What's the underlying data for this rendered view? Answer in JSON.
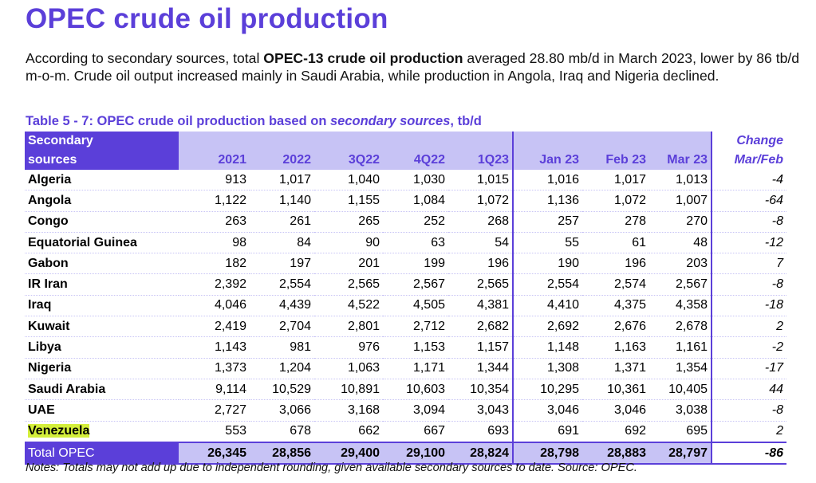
{
  "title": "OPEC crude oil production",
  "intro": {
    "part1": "According to secondary sources, total ",
    "bold": "OPEC-13 crude oil production",
    "part2": " averaged 28.80 mb/d in March 2023, lower by 86 tb/d m-o-m. Crude oil output increased mainly in Saudi Arabia, while production in Angola, Iraq and Nigeria declined."
  },
  "caption": {
    "part1": "Table 5 - 7: OPEC crude oil production based on ",
    "italic": "secondary sources",
    "part2": ", tb/d"
  },
  "table": {
    "corner_line1": "Secondary",
    "corner_line2": "sources",
    "change_line1": "Change",
    "change_line2": "Mar/Feb",
    "columns": [
      "2021",
      "2022",
      "3Q22",
      "4Q22",
      "1Q23",
      "Jan 23",
      "Feb 23",
      "Mar 23"
    ],
    "rows": [
      {
        "name": "Algeria",
        "values": [
          "913",
          "1,017",
          "1,040",
          "1,030",
          "1,015",
          "1,016",
          "1,017",
          "1,013"
        ],
        "change": "-4"
      },
      {
        "name": "Angola",
        "values": [
          "1,122",
          "1,140",
          "1,155",
          "1,084",
          "1,072",
          "1,136",
          "1,072",
          "1,007"
        ],
        "change": "-64"
      },
      {
        "name": "Congo",
        "values": [
          "263",
          "261",
          "265",
          "252",
          "268",
          "257",
          "278",
          "270"
        ],
        "change": "-8"
      },
      {
        "name": "Equatorial Guinea",
        "values": [
          "98",
          "84",
          "90",
          "63",
          "54",
          "55",
          "61",
          "48"
        ],
        "change": "-12"
      },
      {
        "name": "Gabon",
        "values": [
          "182",
          "197",
          "201",
          "199",
          "196",
          "190",
          "196",
          "203"
        ],
        "change": "7"
      },
      {
        "name": "IR Iran",
        "values": [
          "2,392",
          "2,554",
          "2,565",
          "2,567",
          "2,565",
          "2,554",
          "2,574",
          "2,567"
        ],
        "change": "-8"
      },
      {
        "name": "Iraq",
        "values": [
          "4,046",
          "4,439",
          "4,522",
          "4,505",
          "4,381",
          "4,410",
          "4,375",
          "4,358"
        ],
        "change": "-18"
      },
      {
        "name": "Kuwait",
        "values": [
          "2,419",
          "2,704",
          "2,801",
          "2,712",
          "2,682",
          "2,692",
          "2,676",
          "2,678"
        ],
        "change": "2"
      },
      {
        "name": "Libya",
        "values": [
          "1,143",
          "981",
          "976",
          "1,153",
          "1,157",
          "1,148",
          "1,163",
          "1,161"
        ],
        "change": "-2"
      },
      {
        "name": "Nigeria",
        "values": [
          "1,373",
          "1,204",
          "1,063",
          "1,171",
          "1,344",
          "1,308",
          "1,371",
          "1,354"
        ],
        "change": "-17"
      },
      {
        "name": "Saudi Arabia",
        "values": [
          "9,114",
          "10,529",
          "10,891",
          "10,603",
          "10,354",
          "10,295",
          "10,361",
          "10,405"
        ],
        "change": "44"
      },
      {
        "name": "UAE",
        "values": [
          "2,727",
          "3,066",
          "3,168",
          "3,094",
          "3,043",
          "3,046",
          "3,046",
          "3,038"
        ],
        "change": "-8"
      },
      {
        "name": "Venezuela",
        "values": [
          "553",
          "678",
          "662",
          "667",
          "693",
          "691",
          "692",
          "695"
        ],
        "change": "2",
        "highlight": true
      }
    ],
    "total": {
      "name": "Total  OPEC",
      "values": [
        "26,345",
        "28,856",
        "29,400",
        "29,100",
        "28,824",
        "28,798",
        "28,883",
        "28,797"
      ],
      "change": "-86"
    },
    "colors": {
      "accent": "#5b3fd9",
      "header_fill": "#c7c3f5",
      "highlight": "#d4ef3b"
    }
  },
  "notes": "Notes: Totals may not add up due to independent rounding, given available secondary sources to date. Source: OPEC."
}
